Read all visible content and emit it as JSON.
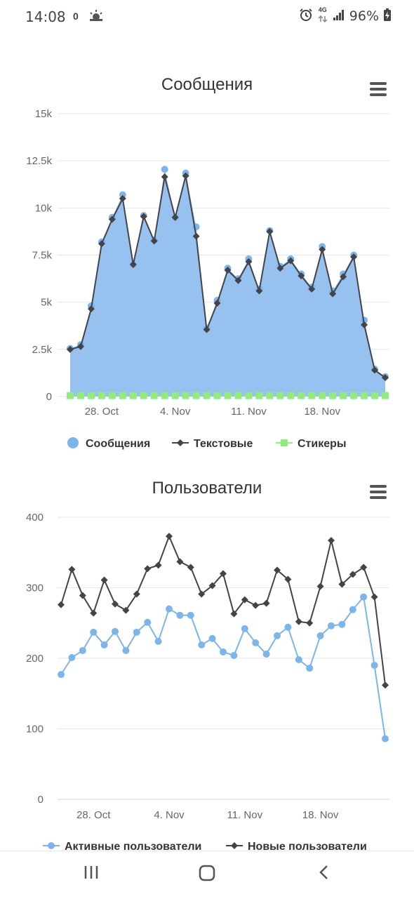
{
  "status_bar": {
    "time": "14:08",
    "notification_count": "0",
    "network": "4G",
    "battery": "96%",
    "icons": [
      "weather-icon",
      "alarm-icon",
      "network-arrows-icon",
      "signal-icon",
      "battery-charging-icon"
    ]
  },
  "colors": {
    "messages_fill": "#97c2f0",
    "messages_point": "#7cb5ec",
    "text_series": "#434348",
    "stickers": "#90ed7d",
    "active_users": "#7cb5ec",
    "grid": "#e6e6e6",
    "axis_text": "#666666"
  },
  "chart_data": [
    {
      "type": "area",
      "title": "Сообщения",
      "menu_icon": "hamburger-menu-icon",
      "ylim": [
        0,
        15000
      ],
      "y_ticks": [
        {
          "value": 0,
          "label": "0"
        },
        {
          "value": 2500,
          "label": "2.5k"
        },
        {
          "value": 5000,
          "label": "5k"
        },
        {
          "value": 7500,
          "label": "7.5k"
        },
        {
          "value": 10000,
          "label": "10k"
        },
        {
          "value": 12500,
          "label": "12.5k"
        },
        {
          "value": 15000,
          "label": "15k"
        }
      ],
      "x_ticks": [
        {
          "index": 3,
          "label": "28. Oct"
        },
        {
          "index": 10,
          "label": "4. Nov"
        },
        {
          "index": 17,
          "label": "11. Nov"
        },
        {
          "index": 24,
          "label": "18. Nov"
        }
      ],
      "grid": true,
      "legend_position": "bottom",
      "series": [
        {
          "name": "Сообщения",
          "type": "area",
          "values": [
            2550,
            2750,
            4800,
            8200,
            9500,
            10700,
            7000,
            9600,
            8300,
            12050,
            9500,
            11850,
            9000,
            3600,
            5100,
            6800,
            6250,
            7300,
            5700,
            8800,
            6900,
            7300,
            6500,
            5800,
            7950,
            5600,
            6500,
            7500,
            4050,
            1450,
            1050
          ]
        },
        {
          "name": "Текстовые",
          "type": "line",
          "values": [
            2500,
            2650,
            4650,
            8100,
            9400,
            10500,
            7000,
            9550,
            8250,
            11650,
            9500,
            11700,
            8500,
            3550,
            4950,
            6700,
            6150,
            7150,
            5600,
            8750,
            6800,
            7200,
            6400,
            5700,
            7800,
            5450,
            6350,
            7400,
            3800,
            1400,
            1000
          ]
        },
        {
          "name": "Стикеры",
          "type": "line",
          "values": [
            50,
            50,
            50,
            50,
            50,
            50,
            50,
            50,
            50,
            50,
            50,
            50,
            50,
            50,
            50,
            50,
            50,
            50,
            50,
            50,
            50,
            50,
            50,
            50,
            50,
            50,
            50,
            50,
            50,
            50,
            50
          ]
        }
      ]
    },
    {
      "type": "line",
      "title": "Пользователи",
      "menu_icon": "hamburger-menu-icon",
      "ylim": [
        0,
        400
      ],
      "y_ticks": [
        {
          "value": 0,
          "label": "0"
        },
        {
          "value": 100,
          "label": "100"
        },
        {
          "value": 200,
          "label": "200"
        },
        {
          "value": 300,
          "label": "300"
        },
        {
          "value": 400,
          "label": "400"
        }
      ],
      "x_ticks": [
        {
          "index": 3,
          "label": "28. Oct"
        },
        {
          "index": 10,
          "label": "4. Nov"
        },
        {
          "index": 17,
          "label": "11. Nov"
        },
        {
          "index": 24,
          "label": "18. Nov"
        }
      ],
      "grid": true,
      "legend_position": "bottom",
      "series": [
        {
          "name": "Активные пользователи",
          "values": [
            177,
            201,
            211,
            237,
            219,
            238,
            211,
            237,
            251,
            224,
            270,
            261,
            261,
            219,
            228,
            209,
            204,
            242,
            222,
            206,
            232,
            244,
            198,
            186,
            232,
            246,
            248,
            269,
            287,
            190,
            86
          ]
        },
        {
          "name": "Новые пользователи",
          "values": [
            276,
            326,
            289,
            264,
            311,
            277,
            268,
            291,
            327,
            332,
            373,
            337,
            329,
            291,
            303,
            320,
            263,
            283,
            275,
            278,
            325,
            312,
            252,
            250,
            302,
            367,
            305,
            319,
            329,
            287,
            162
          ]
        }
      ]
    }
  ]
}
